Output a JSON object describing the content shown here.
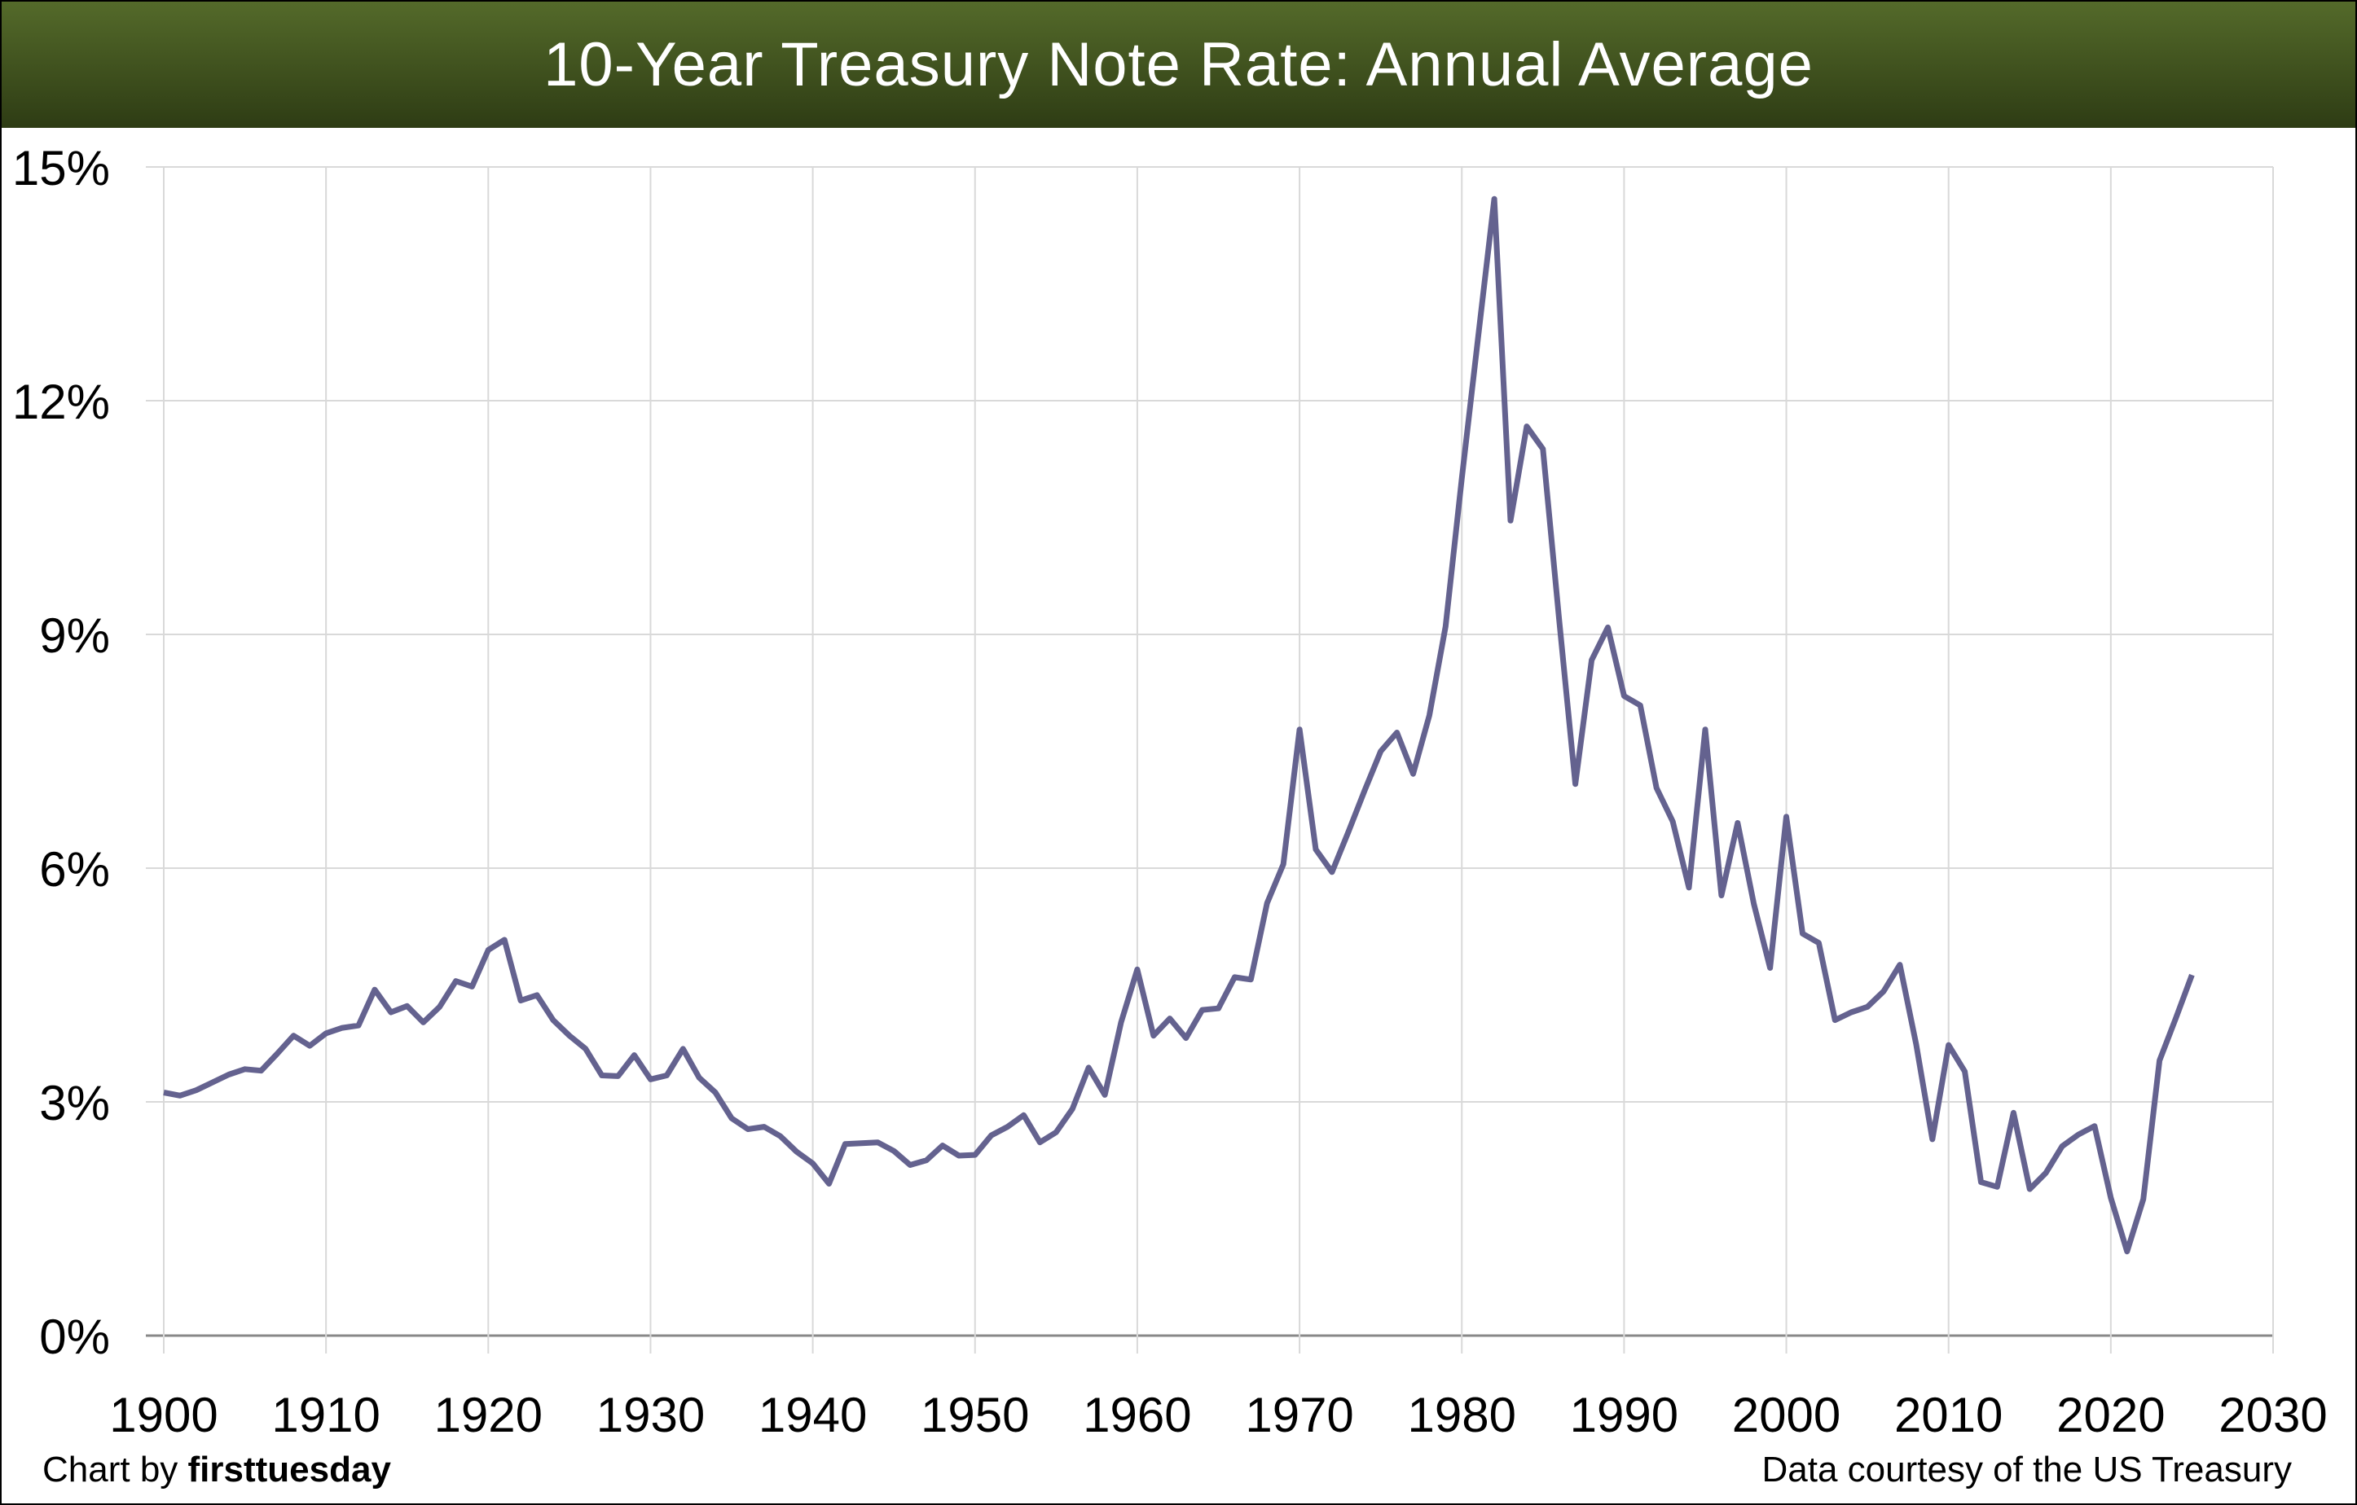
{
  "chart_data": {
    "type": "line",
    "title": "10-Year Treasury Note Rate: Annual Average",
    "xlabel": "",
    "ylabel": "",
    "xlim": [
      1900,
      2030
    ],
    "ylim": [
      0,
      15
    ],
    "grid": true,
    "x_ticks": [
      "1900",
      "1910",
      "1920",
      "1930",
      "1940",
      "1950",
      "1960",
      "1970",
      "1980",
      "1990",
      "2000",
      "2010",
      "2020",
      "2030"
    ],
    "y_ticks": [
      "0%",
      "3%",
      "6%",
      "9%",
      "12%",
      "15%"
    ],
    "series": [
      {
        "name": "10-Year Treasury Note Rate",
        "color": "#64628f",
        "start_year": 1900,
        "values": [
          3.12,
          3.08,
          3.15,
          3.25,
          3.35,
          3.42,
          3.4,
          3.62,
          3.85,
          3.72,
          3.88,
          3.95,
          3.98,
          4.44,
          4.15,
          4.23,
          4.02,
          4.22,
          4.55,
          4.48,
          4.95,
          5.08,
          4.3,
          4.37,
          4.05,
          3.85,
          3.68,
          3.34,
          3.33,
          3.6,
          3.29,
          3.34,
          3.68,
          3.31,
          3.12,
          2.79,
          2.65,
          2.68,
          2.56,
          2.36,
          2.21,
          1.95,
          2.46,
          2.47,
          2.48,
          2.37,
          2.19,
          2.25,
          2.44,
          2.31,
          2.32,
          2.57,
          2.68,
          2.83,
          2.48,
          2.61,
          2.91,
          3.44,
          3.09,
          4.02,
          4.7,
          3.85,
          4.07,
          3.82,
          4.18,
          4.2,
          4.6,
          4.57,
          5.55,
          6.05,
          7.78,
          6.24,
          5.95,
          6.46,
          6.99,
          7.5,
          7.74,
          7.21,
          7.96,
          9.1,
          11.0,
          12.8,
          14.59,
          10.46,
          11.67,
          11.38,
          9.19,
          7.08,
          8.67,
          9.09,
          8.21,
          8.09,
          7.03,
          6.6,
          5.75,
          7.78,
          5.65,
          6.58,
          5.54,
          4.72,
          6.66,
          5.16,
          5.04,
          4.05,
          4.15,
          4.22,
          4.42,
          4.76,
          3.74,
          2.52,
          3.73,
          3.39,
          1.97,
          1.91,
          2.86,
          1.88,
          2.09,
          2.43,
          2.58,
          2.69,
          1.77,
          1.08,
          1.75,
          3.53,
          4.07,
          4.63
        ]
      }
    ]
  },
  "footer": {
    "credit_prefix": "Chart by ",
    "credit_brand": "firsttuesday",
    "source": "Data courtesy of the US Treasury"
  }
}
